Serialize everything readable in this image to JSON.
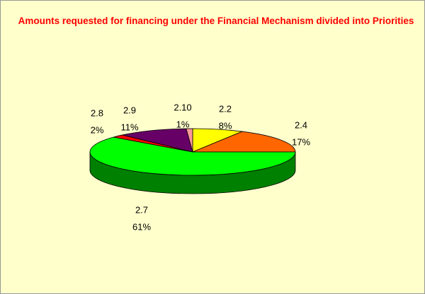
{
  "chart_data": {
    "type": "pie",
    "title": "Amounts requested for financing under the Financial Mechanism divided into Priorities",
    "categories": [
      "2.2",
      "2.4",
      "2.7",
      "2.8",
      "2.9",
      "2.10"
    ],
    "values": [
      8,
      17,
      61,
      2,
      11,
      1
    ],
    "value_labels": [
      "8%",
      "17%",
      "61%",
      "2%",
      "11%",
      "1%"
    ],
    "colors": [
      "#ffff00",
      "#ff6600",
      "#00ff00",
      "#ff0000",
      "#660066",
      "#ff9999"
    ]
  }
}
